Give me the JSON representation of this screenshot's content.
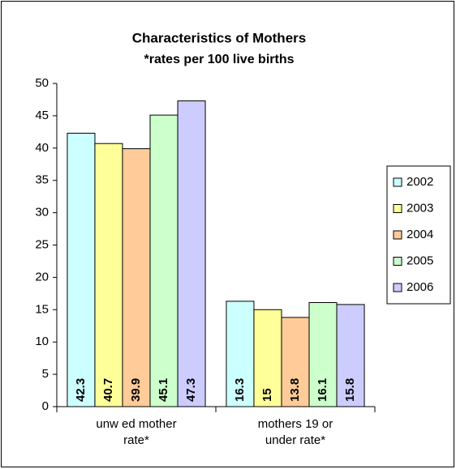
{
  "chart_data": {
    "type": "bar",
    "title": "Characteristics of Mothers",
    "subtitle": "*rates per 100 live births",
    "categories": [
      "unw ed mother rate*",
      "mothers 19 or under rate*"
    ],
    "series": [
      {
        "name": "2002",
        "color": "#ccffff",
        "values": [
          42.3,
          16.3
        ]
      },
      {
        "name": "2003",
        "color": "#ffff99",
        "values": [
          40.7,
          15
        ]
      },
      {
        "name": "2004",
        "color": "#ffcc99",
        "values": [
          39.9,
          13.8
        ]
      },
      {
        "name": "2005",
        "color": "#ccffcc",
        "values": [
          45.1,
          16.1
        ]
      },
      {
        "name": "2006",
        "color": "#ccccff",
        "values": [
          47.3,
          15.8
        ]
      }
    ],
    "ylim": [
      0,
      50
    ],
    "yticks": [
      0,
      5,
      10,
      15,
      20,
      25,
      30,
      35,
      40,
      45,
      50
    ],
    "grid": false,
    "legend": "right",
    "data_labels": true
  }
}
